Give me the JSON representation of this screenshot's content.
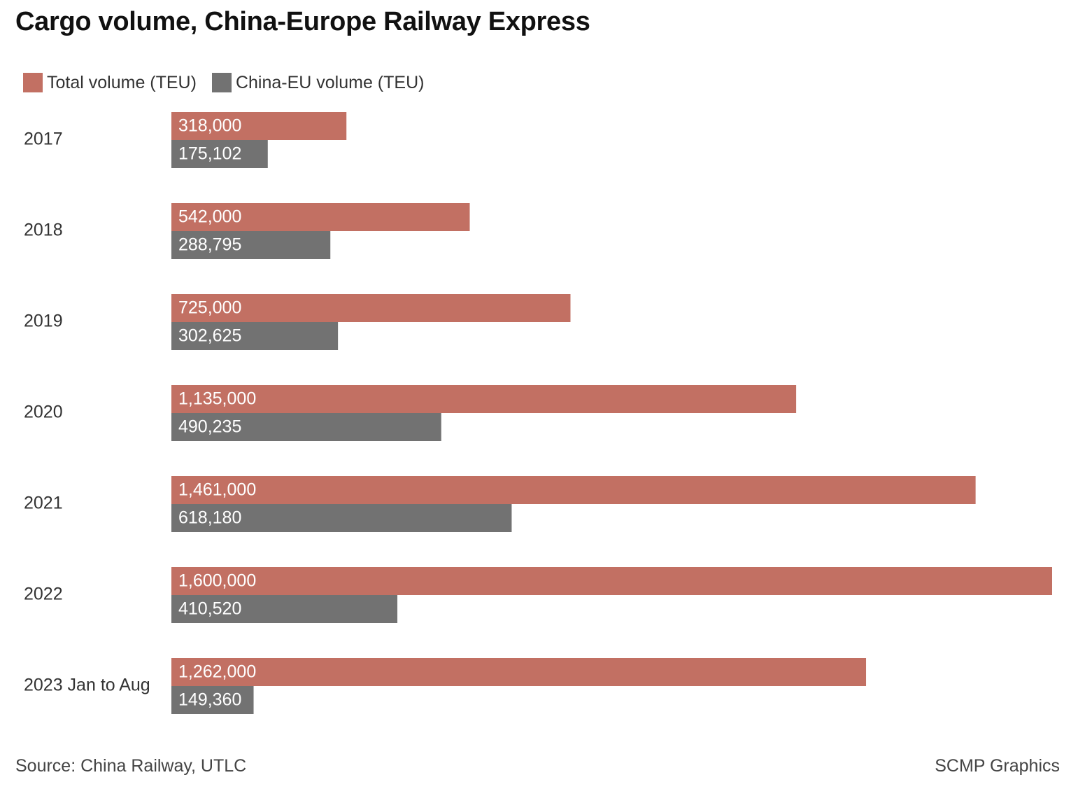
{
  "chart_data": {
    "type": "bar",
    "orientation": "horizontal",
    "title": "Cargo volume, China-Europe Railway Express",
    "categories": [
      "2017",
      "2018",
      "2019",
      "2020",
      "2021",
      "2022",
      "2023 Jan to Aug"
    ],
    "series": [
      {
        "name": "Total volume (TEU)",
        "color": "#c27063",
        "values": [
          318000,
          542000,
          725000,
          1135000,
          1461000,
          1600000,
          1262000
        ],
        "labels": [
          "318,000",
          "542,000",
          "725,000",
          "1,135,000",
          "1,461,000",
          "1,600,000",
          "1,262,000"
        ]
      },
      {
        "name": "China-EU volume (TEU)",
        "color": "#727272",
        "values": [
          175102,
          288795,
          302625,
          490235,
          618180,
          410520,
          149360
        ],
        "labels": [
          "175,102",
          "288,795",
          "302,625",
          "490,235",
          "618,180",
          "410,520",
          "149,360"
        ]
      }
    ],
    "xlim": [
      0,
      1600000
    ],
    "grid": false,
    "legend_position": "top-left",
    "source": "Source: China Railway, UTLC",
    "credit": "SCMP Graphics"
  }
}
